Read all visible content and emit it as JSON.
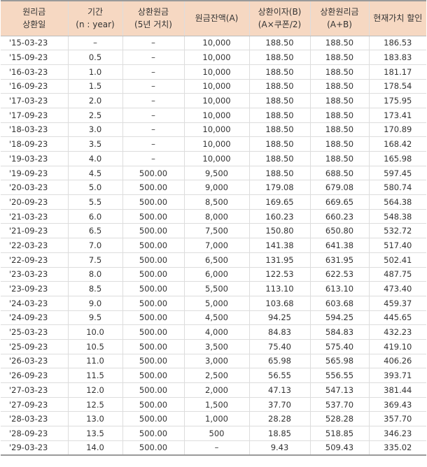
{
  "table": {
    "headers": [
      [
        "원리금",
        "상환일"
      ],
      [
        "기간",
        "(n : year)"
      ],
      [
        "상환원금",
        "(5년 거치)"
      ],
      [
        "원금잔액(A)"
      ],
      [
        "상환이자(B)",
        "(A×쿠폰/2)"
      ],
      [
        "상환원리금",
        "(A+B)"
      ],
      [
        "현재가치 할인"
      ]
    ],
    "rows": [
      [
        "'15-03-23",
        "–",
        "–",
        "10,000",
        "188.50",
        "188.50",
        "186.53"
      ],
      [
        "'15-09-23",
        "0.5",
        "–",
        "10,000",
        "188.50",
        "188.50",
        "183.83"
      ],
      [
        "'16-03-23",
        "1.0",
        "–",
        "10,000",
        "188.50",
        "188.50",
        "181.17"
      ],
      [
        "'16-09-23",
        "1.5",
        "–",
        "10,000",
        "188.50",
        "188.50",
        "178.54"
      ],
      [
        "'17-03-23",
        "2.0",
        "–",
        "10,000",
        "188.50",
        "188.50",
        "175.95"
      ],
      [
        "'17-09-23",
        "2.5",
        "–",
        "10,000",
        "188.50",
        "188.50",
        "173.41"
      ],
      [
        "'18-03-23",
        "3.0",
        "–",
        "10,000",
        "188.50",
        "188.50",
        "170.89"
      ],
      [
        "'18-09-23",
        "3.5",
        "–",
        "10,000",
        "188.50",
        "188.50",
        "168.42"
      ],
      [
        "'19-03-23",
        "4.0",
        "–",
        "10,000",
        "188.50",
        "188.50",
        "165.98"
      ],
      [
        "'19-09-23",
        "4.5",
        "500.00",
        "9,500",
        "188.50",
        "688.50",
        "597.45"
      ],
      [
        "'20-03-23",
        "5.0",
        "500.00",
        "9,000",
        "179.08",
        "679.08",
        "580.74"
      ],
      [
        "'20-09-23",
        "5.5",
        "500.00",
        "8,500",
        "169.65",
        "669.65",
        "564.38"
      ],
      [
        "'21-03-23",
        "6.0",
        "500.00",
        "8,000",
        "160.23",
        "660.23",
        "548.38"
      ],
      [
        "'21-09-23",
        "6.5",
        "500.00",
        "7,500",
        "150.80",
        "650.80",
        "532.72"
      ],
      [
        "'22-03-23",
        "7.0",
        "500.00",
        "7,000",
        "141.38",
        "641.38",
        "517.40"
      ],
      [
        "'22-09-23",
        "7.5",
        "500.00",
        "6,500",
        "131.95",
        "631.95",
        "502.41"
      ],
      [
        "'23-03-23",
        "8.0",
        "500.00",
        "6,000",
        "122.53",
        "622.53",
        "487.75"
      ],
      [
        "'23-09-23",
        "8.5",
        "500.00",
        "5,500",
        "113.10",
        "613.10",
        "473.40"
      ],
      [
        "'24-03-23",
        "9.0",
        "500.00",
        "5,000",
        "103.68",
        "603.68",
        "459.37"
      ],
      [
        "'24-09-23",
        "9.5",
        "500.00",
        "4,500",
        "94.25",
        "594.25",
        "445.65"
      ],
      [
        "'25-03-23",
        "10.0",
        "500.00",
        "4,000",
        "84.83",
        "584.83",
        "432.23"
      ],
      [
        "'25-09-23",
        "10.5",
        "500.00",
        "3,500",
        "75.40",
        "575.40",
        "419.10"
      ],
      [
        "'26-03-23",
        "11.0",
        "500.00",
        "3,000",
        "65.98",
        "565.98",
        "406.26"
      ],
      [
        "'26-09-23",
        "11.5",
        "500.00",
        "2,500",
        "56.55",
        "556.55",
        "393.71"
      ],
      [
        "'27-03-23",
        "12.0",
        "500.00",
        "2,000",
        "47.13",
        "547.13",
        "381.44"
      ],
      [
        "'27-09-23",
        "12.5",
        "500.00",
        "1,500",
        "37.70",
        "537.70",
        "369.43"
      ],
      [
        "'28-03-23",
        "13.0",
        "500.00",
        "1,000",
        "28.28",
        "528.28",
        "357.70"
      ],
      [
        "'28-09-23",
        "13.5",
        "500.00",
        "500",
        "18.85",
        "518.85",
        "346.23"
      ],
      [
        "'29-03-23",
        "14.0",
        "500.00",
        "–",
        "9.43",
        "509.43",
        "335.02"
      ]
    ]
  }
}
